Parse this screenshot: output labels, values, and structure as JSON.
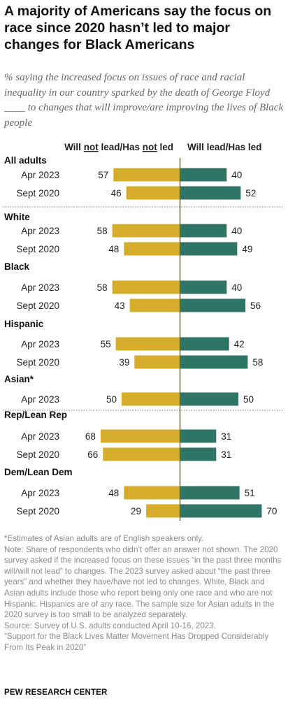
{
  "title": "A majority of Americans say the focus on race since 2020 hasn’t led to major changes for Black Americans",
  "subtitle": "% saying the increased focus on issues of race and racial inequality in our country sparked by the death of George Floyd ____ to changes that will improve/are improving the lives of Black people",
  "colors": {
    "not_led": "#d6ad2b",
    "led": "#2f7565",
    "divider": "#6b6e1f"
  },
  "chart_data": {
    "type": "bar",
    "orientation": "diverging-horizontal",
    "legend": {
      "left": {
        "parts": [
          "Will ",
          "not",
          " lead/Has ",
          "not",
          " led"
        ],
        "underlined": [
          1,
          3
        ]
      },
      "right": "Will lead/Has led"
    },
    "groups": [
      {
        "name": "All adults",
        "rows": [
          {
            "label": "Apr 2023",
            "not_led": 57,
            "led": 40
          },
          {
            "label": "Sept 2020",
            "not_led": 46,
            "led": 52
          }
        ]
      },
      {
        "name": "White",
        "rows": [
          {
            "label": "Apr 2023",
            "not_led": 58,
            "led": 40
          },
          {
            "label": "Sept 2020",
            "not_led": 48,
            "led": 49
          }
        ]
      },
      {
        "name": "Black",
        "rows": [
          {
            "label": "Apr 2023",
            "not_led": 58,
            "led": 40
          },
          {
            "label": "Sept 2020",
            "not_led": 43,
            "led": 56
          }
        ]
      },
      {
        "name": "Hispanic",
        "rows": [
          {
            "label": "Apr 2023",
            "not_led": 55,
            "led": 42
          },
          {
            "label": "Sept 2020",
            "not_led": 39,
            "led": 58
          }
        ]
      },
      {
        "name": "Asian*",
        "rows": [
          {
            "label": "Apr 2023",
            "not_led": 50,
            "led": 50
          }
        ]
      },
      {
        "name": "Rep/Lean Rep",
        "rows": [
          {
            "label": "Apr 2023",
            "not_led": 68,
            "led": 31
          },
          {
            "label": "Sept 2020",
            "not_led": 66,
            "led": 31
          }
        ]
      },
      {
        "name": "Dem/Lean Dem",
        "rows": [
          {
            "label": "Apr 2023",
            "not_led": 48,
            "led": 51
          },
          {
            "label": "Sept 2020",
            "not_led": 29,
            "led": 70
          }
        ]
      }
    ]
  },
  "notes": [
    "*Estimates of Asian adults are of English speakers only.",
    "Note: Share of respondents who didn’t offer an answer not shown. The 2020 survey asked if the increased focus on these issues “in the past three months will/will not lead” to changes. The 2023 survey asked about “the past three years” and whether they have/have not led to changes. White, Black and Asian adults include those who report being only one race and who are not Hispanic. Hispanics are of any race. The sample size for Asian adults in the 2020 survey is too small to be analyzed separately.",
    "Source: Survey of U.S. adults conducted April 10-16, 2023.",
    "“Support for the Black Lives Matter Movement Has Dropped Considerably From Its Peak in 2020”"
  ],
  "footer": "PEW RESEARCH CENTER"
}
